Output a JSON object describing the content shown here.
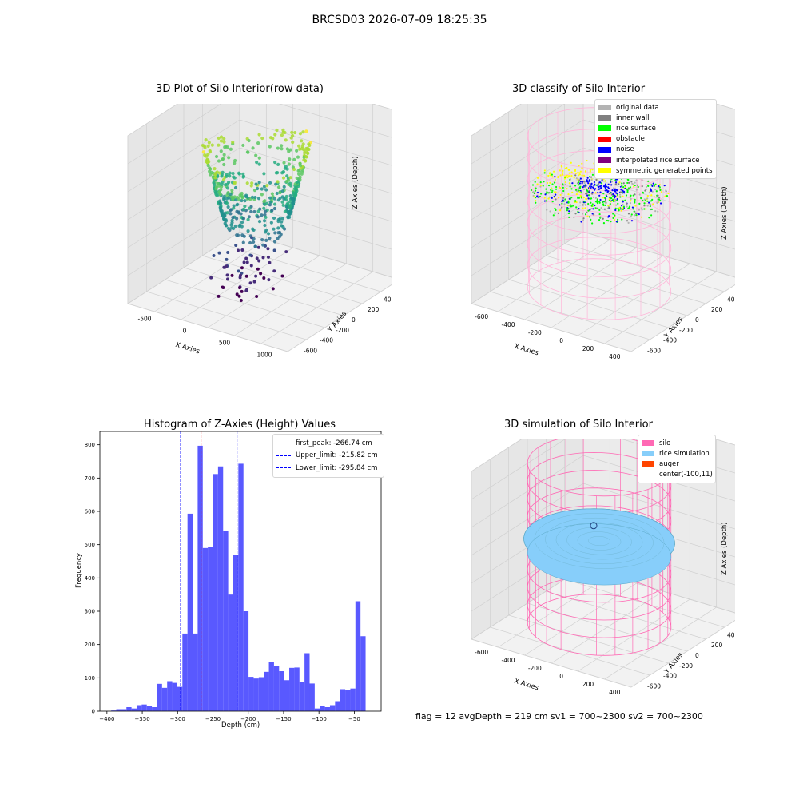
{
  "page": {
    "suptitle": "BRCSD03 2026-07-09 18:25:35"
  },
  "colors": {
    "bar": "#5050ff",
    "first_peak_line": "#ff0000",
    "limit_line": "#0000ff",
    "pane": "#f2f2f2",
    "silo": "#ff69b4",
    "rice": "#87cefa",
    "auger": "#ff4500"
  },
  "plot1": {
    "title": "3D Plot of Silo Interior(row data)",
    "colormap": "viridis",
    "xlabel": "X Axies",
    "ylabel": "Y Axies",
    "zlabel": "Z Axies (Depth)",
    "xticks": [
      "-500",
      "0",
      "500",
      "1000"
    ],
    "yticks": [
      "-600",
      "-400",
      "-200",
      "0",
      "200",
      "400",
      "600"
    ],
    "zticks": [
      "-50",
      "-100",
      "-150",
      "-200",
      "-250",
      "-300",
      "-350",
      "-400"
    ]
  },
  "plot2": {
    "title": "3D classify of Silo Interior",
    "legend": [
      {
        "label": "original data",
        "color": "#b3b3b3"
      },
      {
        "label": "inner wall",
        "color": "#808080"
      },
      {
        "label": "rice surface",
        "color": "#00ff00"
      },
      {
        "label": "obstacle",
        "color": "#ff0000"
      },
      {
        "label": "noise",
        "color": "#0000ff"
      },
      {
        "label": "interpolated rice surface",
        "color": "#800080"
      },
      {
        "label": "symmetric generated points",
        "color": "#ffff00"
      }
    ],
    "xlabel": "X Axies",
    "ylabel": "Y Axies",
    "zlabel": "Z Axies (Depth)",
    "xticks": [
      "-600",
      "-400",
      "-200",
      "0",
      "200",
      "400"
    ],
    "yticks": [
      "-600",
      "-400",
      "-200",
      "0",
      "200",
      "400",
      "600"
    ],
    "zticks": [
      "200",
      "0",
      "-200",
      "-400",
      "-600",
      "-800"
    ],
    "zticks_top": "400"
  },
  "plot3": {
    "title": "3D simulation of Silo Interior",
    "legend": [
      {
        "label": "silo",
        "color": "#ff69b4"
      },
      {
        "label": "rice simulation",
        "color": "#87cefa"
      },
      {
        "label": "auger",
        "color": "#ff4500"
      },
      {
        "label": "center(-100,11)",
        "color": ""
      }
    ],
    "xlabel": "X Axies",
    "ylabel": "Y Axies",
    "zlabel": "Z Axies (Depth)",
    "xticks": [
      "-600",
      "-400",
      "-200",
      "0",
      "200",
      "400"
    ],
    "yticks": [
      "-600",
      "-400",
      "-200",
      "0",
      "200",
      "400",
      "600"
    ],
    "zticks": [
      "400",
      "200",
      "0",
      "-200",
      "-400",
      "-600",
      "-800"
    ],
    "footer": "flag = 12   avgDepth = 219 cm  sv1 = 700~2300  sv2 = 700~2300"
  },
  "chart_data": {
    "type": "bar",
    "title": "Histogram of Z-Axies (Height) Values",
    "xlabel": "Depth (cm)",
    "ylabel": "Frequency",
    "xlim": [
      -410,
      -12
    ],
    "ylim": [
      0,
      840
    ],
    "xticks": [
      -400,
      -350,
      -300,
      -250,
      -200,
      -150,
      -100,
      -50
    ],
    "yticks": [
      0,
      100,
      200,
      300,
      400,
      500,
      600,
      700,
      800
    ],
    "bin_start": -394,
    "bin_width": 7.2,
    "values": [
      2,
      6,
      6,
      12,
      8,
      18,
      20,
      16,
      12,
      82,
      70,
      90,
      85,
      73,
      233,
      593,
      233,
      797,
      490,
      492,
      712,
      735,
      540,
      350,
      470,
      743,
      300,
      103,
      98,
      102,
      118,
      147,
      135,
      120,
      93,
      130,
      131,
      88,
      174,
      83,
      8,
      15,
      12,
      18,
      30,
      66,
      64,
      68,
      330,
      225
    ],
    "lines": [
      {
        "label": "first_peak: -266.74 cm",
        "x": -266.74,
        "color": "#ff0000"
      },
      {
        "label": "Upper_limit: -215.82 cm",
        "x": -215.82,
        "color": "#0000ff"
      },
      {
        "label": "Lower_limit: -295.84 cm",
        "x": -295.84,
        "color": "#0000ff"
      }
    ],
    "legend_position": "upper right"
  }
}
